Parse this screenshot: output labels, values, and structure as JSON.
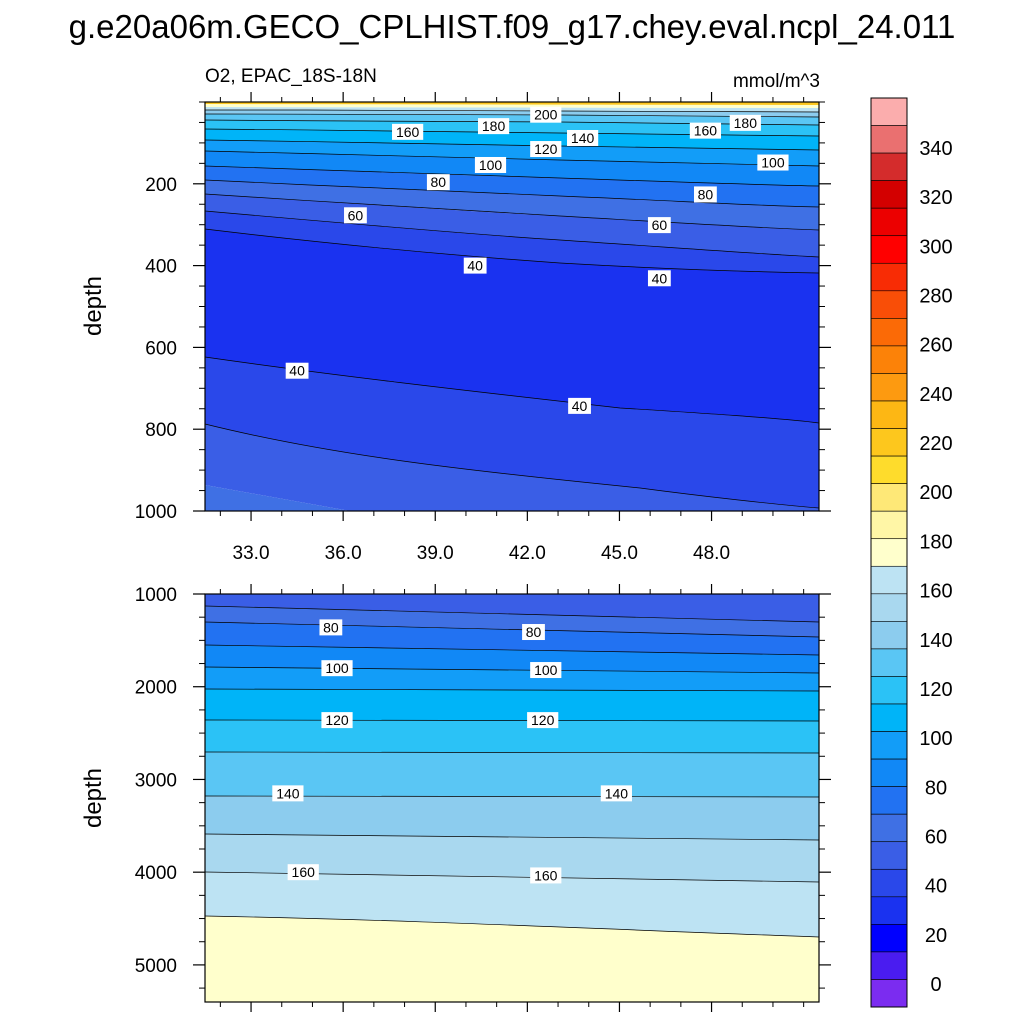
{
  "title": "g.e20a06m.GECO_CPLHIST.f09_g17.chey.eval.ncpl_24.011",
  "chart_data": {
    "type": "contour",
    "variable": "O2",
    "region": "EPAC_18S-18N",
    "left_label": "O2, EPAC_18S-18N",
    "units": "mmol/m^3",
    "colorbar": {
      "levels": [
        0,
        20,
        40,
        60,
        80,
        100,
        120,
        140,
        160,
        180,
        200,
        220,
        240,
        260,
        280,
        300,
        320,
        340
      ],
      "tick_labels": [
        "0",
        "20",
        "40",
        "60",
        "80",
        "100",
        "120",
        "140",
        "160",
        "180",
        "200",
        "220",
        "240",
        "260",
        "280",
        "300",
        "320",
        "340"
      ],
      "colors": [
        "#7b2cf0",
        "#4a1cf0",
        "#0000ff",
        "#1a32f0",
        "#2a48ea",
        "#3a5ee6",
        "#3f70e4",
        "#2272f2",
        "#1188f6",
        "#129df8",
        "#00b4f8",
        "#2bc2f6",
        "#5ac6f4",
        "#8cccee",
        "#a9d8ef",
        "#bde3f3",
        "#ffffcc",
        "#fff6a6",
        "#fee877",
        "#fedc2c",
        "#fdc71d",
        "#fdb714",
        "#fd9a10",
        "#fc8208",
        "#fb6a06",
        "#f94e07",
        "#f82c05",
        "#ff0000",
        "#ec0000",
        "#d30000",
        "#d42c2c",
        "#ea7070",
        "#fbadad"
      ]
    },
    "panels": [
      {
        "name": "upper",
        "x_axis": {
          "ticks": [
            33.0,
            36.0,
            39.0,
            42.0,
            45.0,
            48.0
          ],
          "tick_labels": [
            "33.0",
            "36.0",
            "39.0",
            "42.0",
            "45.0",
            "48.0"
          ],
          "range": [
            31.5,
            51.5
          ]
        },
        "y_axis": {
          "label": "depth",
          "ticks": [
            200,
            400,
            600,
            800,
            1000
          ],
          "tick_labels": [
            "200",
            "400",
            "600",
            "800",
            "1000"
          ],
          "range": [
            0,
            1000
          ],
          "inverted": true
        },
        "contour_labels": [
          {
            "text": "200",
            "x": 42.6,
            "y": 31
          },
          {
            "text": "180",
            "x": 40.9,
            "y": 59
          },
          {
            "text": "180",
            "x": 49.1,
            "y": 51
          },
          {
            "text": "160",
            "x": 38.1,
            "y": 73
          },
          {
            "text": "160",
            "x": 47.8,
            "y": 70
          },
          {
            "text": "140",
            "x": 43.8,
            "y": 88
          },
          {
            "text": "120",
            "x": 42.6,
            "y": 115
          },
          {
            "text": "100",
            "x": 40.8,
            "y": 154
          },
          {
            "text": "100",
            "x": 50.0,
            "y": 148
          },
          {
            "text": "80",
            "x": 39.1,
            "y": 196
          },
          {
            "text": "80",
            "x": 47.8,
            "y": 226
          },
          {
            "text": "60",
            "x": 36.4,
            "y": 277
          },
          {
            "text": "60",
            "x": 46.3,
            "y": 301
          },
          {
            "text": "40",
            "x": 40.3,
            "y": 400
          },
          {
            "text": "40",
            "x": 46.3,
            "y": 431
          },
          {
            "text": "40",
            "x": 34.5,
            "y": 657
          },
          {
            "text": "40",
            "x": 43.7,
            "y": 743
          }
        ]
      },
      {
        "name": "lower",
        "x_axis": {
          "ticks": [
            33.0,
            36.0,
            39.0,
            42.0,
            45.0,
            48.0
          ],
          "tick_labels": [],
          "range": [
            31.5,
            51.5
          ]
        },
        "y_axis": {
          "label": "depth",
          "ticks": [
            1000,
            2000,
            3000,
            4000,
            5000
          ],
          "tick_labels": [
            "1000",
            "2000",
            "3000",
            "4000",
            "5000"
          ],
          "range": [
            1000,
            5400
          ],
          "inverted": true
        },
        "contour_labels": [
          {
            "text": "80",
            "x": 35.6,
            "y": 1360
          },
          {
            "text": "80",
            "x": 42.2,
            "y": 1410
          },
          {
            "text": "100",
            "x": 35.8,
            "y": 1800
          },
          {
            "text": "100",
            "x": 42.6,
            "y": 1820
          },
          {
            "text": "120",
            "x": 35.8,
            "y": 2360
          },
          {
            "text": "120",
            "x": 42.5,
            "y": 2360
          },
          {
            "text": "140",
            "x": 34.2,
            "y": 3150
          },
          {
            "text": "140",
            "x": 44.9,
            "y": 3150
          },
          {
            "text": "160",
            "x": 34.7,
            "y": 4000
          },
          {
            "text": "160",
            "x": 42.6,
            "y": 4035
          }
        ]
      }
    ]
  }
}
